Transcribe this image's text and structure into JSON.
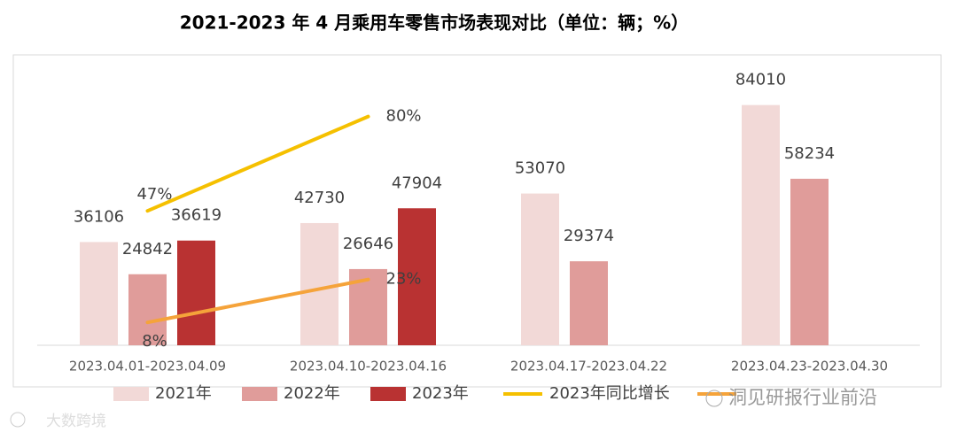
{
  "chart_data": {
    "type": "bar",
    "title": "2021-2023 年 4 月乘用车零售市场表现对比（单位：辆；%）",
    "categories": [
      "2023.04.01-2023.04.09",
      "2023.04.10-2023.04.16",
      "2023.04.17-2023.04.22",
      "2023.04.23-2023.04.30"
    ],
    "ylim": [
      0,
      100000
    ],
    "y2lim": [
      0,
      100
    ],
    "series": [
      {
        "name": "2021年",
        "type": "bar",
        "color": "#f2d9d7",
        "values": [
          36106,
          42730,
          53070,
          84010
        ]
      },
      {
        "name": "2022年",
        "type": "bar",
        "color": "#e09c9a",
        "values": [
          24842,
          26646,
          29374,
          58234
        ]
      },
      {
        "name": "2023年",
        "type": "bar",
        "color": "#b93232",
        "values": [
          36619,
          47904,
          null,
          null
        ]
      },
      {
        "name": "2023年同比增长",
        "type": "line",
        "axis": "y2",
        "color": "#f5c000",
        "values": [
          47,
          80,
          null,
          null
        ],
        "value_labels": [
          "47%",
          "80%",
          null,
          null
        ]
      },
      {
        "type": "line",
        "axis": "y2",
        "color": "#f5a33a",
        "values": [
          8,
          23,
          null,
          null
        ],
        "value_labels": [
          "8%",
          "23%",
          null,
          null
        ]
      }
    ],
    "watermarks": [
      "洞见研报行业前沿",
      "大数跨境"
    ]
  }
}
